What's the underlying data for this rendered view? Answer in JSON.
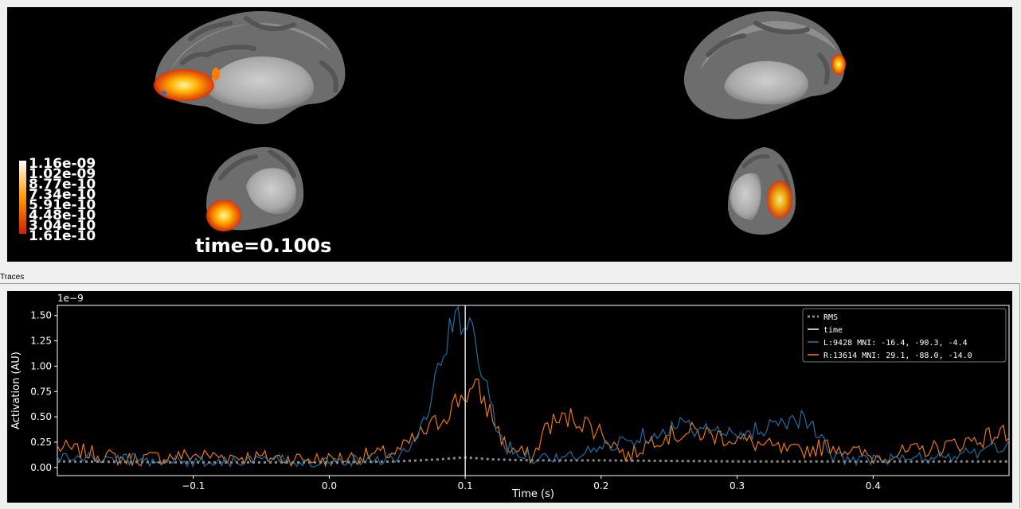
{
  "viewer": {
    "time_text": "time=0.100s",
    "colorbar_labels": [
      "1.16e-09",
      "1.02e-09",
      "8.77e-10",
      "7.34e-10",
      "5.91e-10",
      "4.48e-10",
      "3.04e-10",
      "1.61e-10"
    ]
  },
  "dock": {
    "title": "Traces"
  },
  "chart_data": {
    "type": "line",
    "xlabel": "Time (s)",
    "ylabel": "Activation (AU)",
    "y_scale_label": "1e−9",
    "xlim": [
      -0.2,
      0.5
    ],
    "ylim": [
      -0.08,
      1.6
    ],
    "x_ticks": [
      -0.1,
      0.0,
      0.1,
      0.2,
      0.3,
      0.4
    ],
    "x_tick_labels": [
      "−0.1",
      "0.0",
      "0.1",
      "0.2",
      "0.3",
      "0.4"
    ],
    "y_ticks": [
      0.0,
      0.25,
      0.5,
      0.75,
      1.0,
      1.25,
      1.5
    ],
    "y_tick_labels": [
      "0.00",
      "0.25",
      "0.50",
      "0.75",
      "1.00",
      "1.25",
      "1.50"
    ],
    "time_marker": 0.1,
    "legend_position": "top-right",
    "legend": [
      "RMS",
      "time",
      "L:9428   MNI: -16.4, -90.3,  -4.4",
      "R:13614  MNI:  29.1, -88.0, -14.0"
    ],
    "colors": {
      "rms": "#888888",
      "time": "#ffffff",
      "left": "#1f77b4",
      "right": "#ff7f0e"
    },
    "series": [
      {
        "name": "RMS",
        "style": "dotted",
        "x": [
          -0.2,
          -0.1,
          0.0,
          0.05,
          0.08,
          0.1,
          0.12,
          0.15,
          0.2,
          0.3,
          0.4,
          0.5
        ],
        "values": [
          0.06,
          0.05,
          0.05,
          0.06,
          0.08,
          0.1,
          0.08,
          0.07,
          0.07,
          0.06,
          0.06,
          0.06
        ]
      },
      {
        "name": "L:9428   MNI: -16.4, -90.3,  -4.4",
        "x": [
          -0.2,
          -0.15,
          -0.1,
          -0.05,
          0.0,
          0.05,
          0.06,
          0.07,
          0.08,
          0.09,
          0.1,
          0.11,
          0.12,
          0.13,
          0.15,
          0.18,
          0.2,
          0.24,
          0.26,
          0.3,
          0.33,
          0.35,
          0.37,
          0.4,
          0.45,
          0.5
        ],
        "values": [
          0.1,
          0.08,
          0.06,
          0.07,
          0.06,
          0.1,
          0.2,
          0.45,
          0.95,
          1.4,
          1.47,
          1.1,
          0.55,
          0.2,
          0.1,
          0.1,
          0.2,
          0.35,
          0.42,
          0.3,
          0.45,
          0.5,
          0.1,
          0.07,
          0.1,
          0.2
        ]
      },
      {
        "name": "R:13614  MNI:  29.1, -88.0, -14.0",
        "x": [
          -0.2,
          -0.15,
          -0.1,
          -0.05,
          0.0,
          0.05,
          0.06,
          0.08,
          0.09,
          0.1,
          0.11,
          0.12,
          0.13,
          0.15,
          0.16,
          0.18,
          0.2,
          0.22,
          0.24,
          0.27,
          0.3,
          0.34,
          0.37,
          0.4,
          0.45,
          0.5
        ],
        "values": [
          0.2,
          0.08,
          0.12,
          0.1,
          0.08,
          0.15,
          0.25,
          0.45,
          0.6,
          0.74,
          0.75,
          0.5,
          0.2,
          0.1,
          0.42,
          0.5,
          0.35,
          0.1,
          0.3,
          0.35,
          0.28,
          0.15,
          0.22,
          0.1,
          0.2,
          0.35
        ]
      }
    ]
  }
}
